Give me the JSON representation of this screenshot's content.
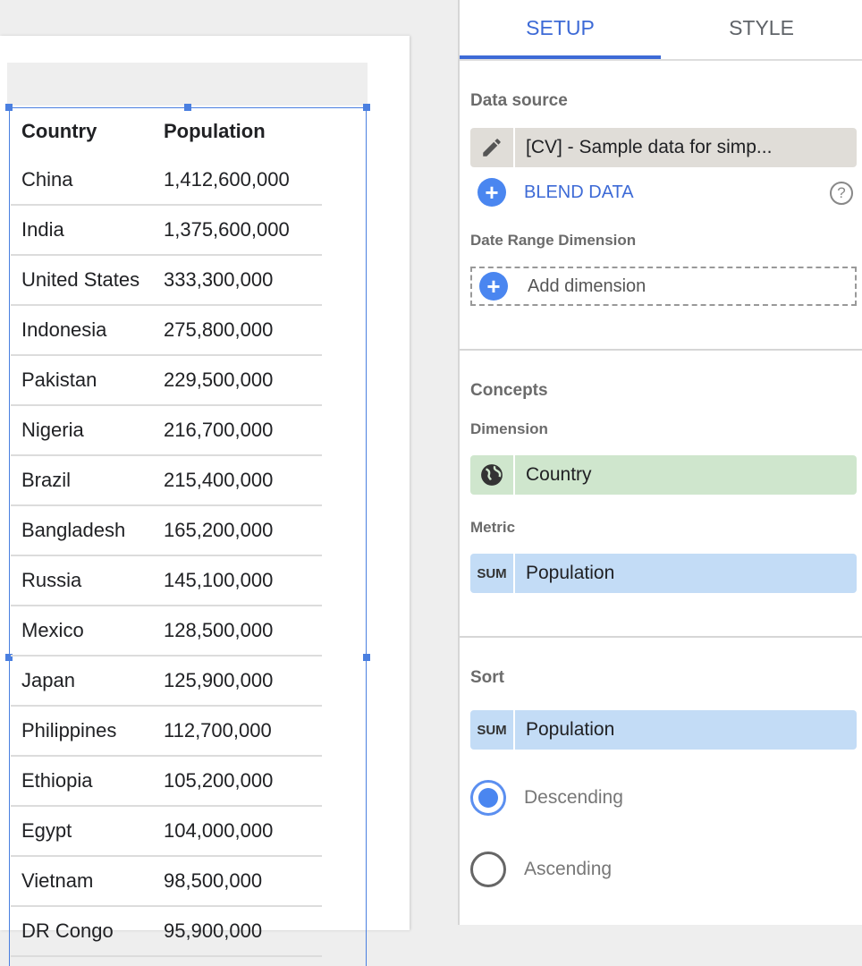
{
  "table": {
    "headers": [
      "Country",
      "Population"
    ],
    "rows": [
      [
        "China",
        "1,412,600,000"
      ],
      [
        "India",
        "1,375,600,000"
      ],
      [
        "United States",
        "333,300,000"
      ],
      [
        "Indonesia",
        "275,800,000"
      ],
      [
        "Pakistan",
        "229,500,000"
      ],
      [
        "Nigeria",
        "216,700,000"
      ],
      [
        "Brazil",
        "215,400,000"
      ],
      [
        "Bangladesh",
        "165,200,000"
      ],
      [
        "Russia",
        "145,100,000"
      ],
      [
        "Mexico",
        "128,500,000"
      ],
      [
        "Japan",
        "125,900,000"
      ],
      [
        "Philippines",
        "112,700,000"
      ],
      [
        "Ethiopia",
        "105,200,000"
      ],
      [
        "Egypt",
        "104,000,000"
      ],
      [
        "Vietnam",
        "98,500,000"
      ],
      [
        "DR Congo",
        "95,900,000"
      ]
    ]
  },
  "panel": {
    "tabs": [
      "SETUP",
      "STYLE"
    ],
    "data_source_label": "Data source",
    "data_source": "[CV] - Sample data for simp...",
    "blend": "BLEND DATA",
    "date_range_label": "Date Range Dimension",
    "add_dimension": "Add dimension",
    "concepts": "Concepts",
    "dimension_label": "Dimension",
    "dimension": "Country",
    "metric_label": "Metric",
    "metric_agg": "SUM",
    "metric": "Population",
    "sort_label": "Sort",
    "sort_agg": "SUM",
    "sort_field": "Population",
    "descending": "Descending",
    "ascending": "Ascending",
    "sort_selected": "Descending"
  },
  "colors": {
    "accent": "#3d6ad6",
    "dimension_chip": "#cfe6cd",
    "metric_chip": "#c3dcf6",
    "source_chip": "#e0ddd8"
  }
}
